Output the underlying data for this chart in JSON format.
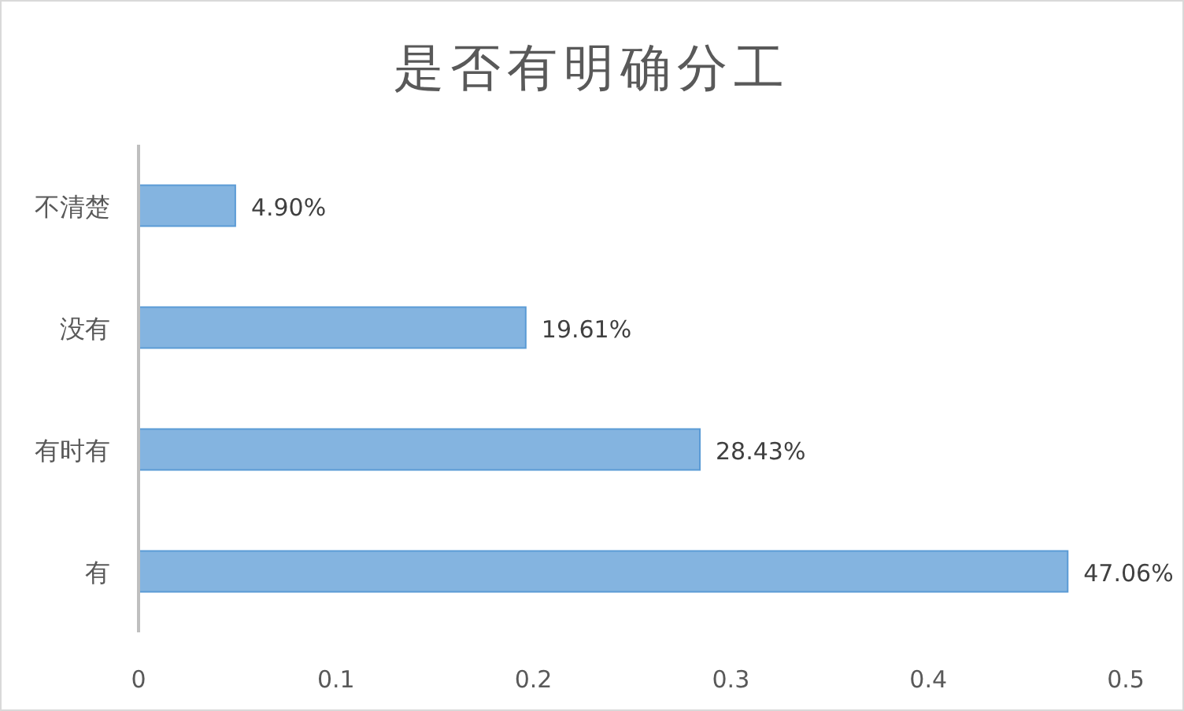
{
  "chart_data": {
    "type": "bar",
    "orientation": "horizontal",
    "title": "是否有明确分工",
    "categories": [
      "不清楚",
      "没有",
      "有时有",
      "有"
    ],
    "values": [
      0.049,
      0.1961,
      0.2843,
      0.4706
    ],
    "value_labels": [
      "4.90%",
      "19.61%",
      "28.43%",
      "47.06%"
    ],
    "color": "#5b9bd5",
    "xlim": [
      0,
      0.5
    ],
    "xticks": [
      0,
      0.1,
      0.2,
      0.3,
      0.4,
      0.5
    ],
    "grid": false
  }
}
